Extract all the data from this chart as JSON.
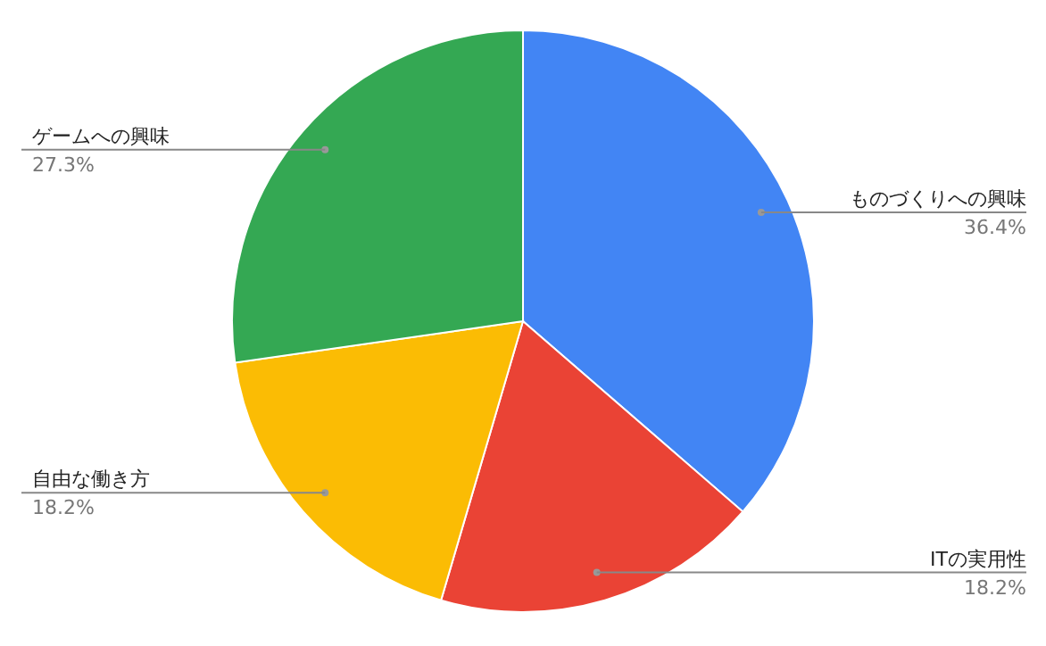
{
  "chart_data": {
    "type": "pie",
    "categories": [
      "ものづくりへの興味",
      "ITの実用性",
      "自由な働き方",
      "ゲームへの興味"
    ],
    "values": [
      36.4,
      18.2,
      18.2,
      27.3
    ],
    "colors": [
      "#4285f4",
      "#ea4335",
      "#fbbc04",
      "#34a853"
    ],
    "value_labels": [
      "36.4%",
      "18.2%",
      "18.2%",
      "27.3%"
    ]
  }
}
